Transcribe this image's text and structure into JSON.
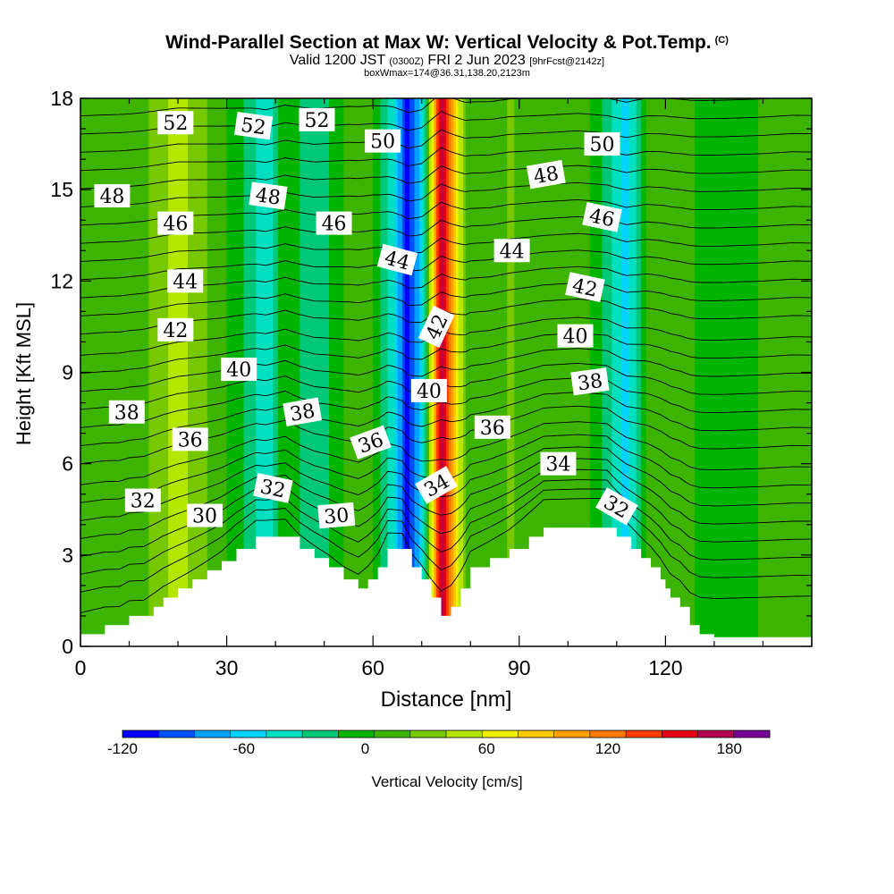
{
  "title": "Wind-Parallel Section at Max W: Vertical Velocity & Pot.Temp.",
  "title_mark": "(C)",
  "subtitle_main": "Valid 1200 JST",
  "subtitle_utc": "(0300Z)",
  "subtitle_date": "FRI 2 Jun 2023",
  "subtitle_fcst": "[9hrFcst@2142z]",
  "subtitle2": "boxWmax=174@36.31,138.20,2123m",
  "chart_data": {
    "type": "heatmap",
    "xlabel": "Distance [nm]",
    "ylabel": "Height [Kft MSL]",
    "xlim": [
      0,
      150
    ],
    "ylim": [
      0,
      18
    ],
    "x_ticks": [
      "0",
      "30",
      "60",
      "90",
      "120"
    ],
    "y_ticks": [
      "0",
      "3",
      "6",
      "9",
      "12",
      "15",
      "18"
    ],
    "colorbar": {
      "label": "Vertical Velocity [cm/s]",
      "range": [
        -120,
        200
      ],
      "tick_labels": [
        "-120",
        "-60",
        "0",
        "60",
        "120",
        "180"
      ],
      "colors": [
        "#0000ff",
        "#0050ff",
        "#00a0ff",
        "#00d2ff",
        "#00e0c0",
        "#00c878",
        "#00b400",
        "#3cb400",
        "#78c800",
        "#b4e600",
        "#f0f000",
        "#ffc800",
        "#ffa000",
        "#ff7800",
        "#ff3c00",
        "#e60014",
        "#b40050",
        "#780096"
      ]
    },
    "velocity_columns": [
      {
        "x": 0,
        "w": 5
      },
      {
        "x": 10,
        "w": 5
      },
      {
        "x": 20,
        "w": 50
      },
      {
        "x": 35,
        "w": -20
      },
      {
        "x": 38,
        "w": -50
      },
      {
        "x": 42,
        "w": 5
      },
      {
        "x": 48,
        "w": -30
      },
      {
        "x": 55,
        "w": 10
      },
      {
        "x": 60,
        "w": 5
      },
      {
        "x": 64,
        "w": -40
      },
      {
        "x": 67,
        "w": -110
      },
      {
        "x": 70,
        "w": -60
      },
      {
        "x": 72,
        "w": 60
      },
      {
        "x": 74,
        "w": 174
      },
      {
        "x": 76,
        "w": 110
      },
      {
        "x": 79,
        "w": 20
      },
      {
        "x": 84,
        "w": 5
      },
      {
        "x": 88,
        "w": 25
      },
      {
        "x": 95,
        "w": 5
      },
      {
        "x": 102,
        "w": 20
      },
      {
        "x": 108,
        "w": -20
      },
      {
        "x": 112,
        "w": -60
      },
      {
        "x": 116,
        "w": 5
      },
      {
        "x": 120,
        "w": 20
      },
      {
        "x": 125,
        "w": 5
      },
      {
        "x": 132,
        "w": 0
      },
      {
        "x": 140,
        "w": 5
      },
      {
        "x": 146,
        "w": 20
      },
      {
        "x": 150,
        "w": 10
      }
    ],
    "terrain": [
      {
        "x": 0,
        "h": 0.4
      },
      {
        "x": 5,
        "h": 0.7
      },
      {
        "x": 8,
        "h": 0.7
      },
      {
        "x": 10,
        "h": 1.0
      },
      {
        "x": 13,
        "h": 1.0
      },
      {
        "x": 15,
        "h": 1.3
      },
      {
        "x": 17,
        "h": 1.6
      },
      {
        "x": 20,
        "h": 1.9
      },
      {
        "x": 23,
        "h": 2.2
      },
      {
        "x": 26,
        "h": 2.5
      },
      {
        "x": 29,
        "h": 2.8
      },
      {
        "x": 32,
        "h": 3.2
      },
      {
        "x": 36,
        "h": 3.6
      },
      {
        "x": 42,
        "h": 3.6
      },
      {
        "x": 45,
        "h": 3.2
      },
      {
        "x": 48,
        "h": 2.9
      },
      {
        "x": 51,
        "h": 2.6
      },
      {
        "x": 54,
        "h": 2.2
      },
      {
        "x": 57,
        "h": 1.9
      },
      {
        "x": 59,
        "h": 2.2
      },
      {
        "x": 61,
        "h": 2.6
      },
      {
        "x": 63,
        "h": 3.2
      },
      {
        "x": 66,
        "h": 3.2
      },
      {
        "x": 68,
        "h": 2.6
      },
      {
        "x": 70,
        "h": 2.2
      },
      {
        "x": 72,
        "h": 1.6
      },
      {
        "x": 74,
        "h": 1.0
      },
      {
        "x": 76,
        "h": 1.3
      },
      {
        "x": 78,
        "h": 1.9
      },
      {
        "x": 80,
        "h": 2.6
      },
      {
        "x": 84,
        "h": 2.9
      },
      {
        "x": 88,
        "h": 3.2
      },
      {
        "x": 92,
        "h": 3.6
      },
      {
        "x": 95,
        "h": 3.9
      },
      {
        "x": 100,
        "h": 3.9
      },
      {
        "x": 108,
        "h": 3.9
      },
      {
        "x": 110,
        "h": 3.6
      },
      {
        "x": 113,
        "h": 3.2
      },
      {
        "x": 115,
        "h": 2.9
      },
      {
        "x": 117,
        "h": 2.6
      },
      {
        "x": 119,
        "h": 2.2
      },
      {
        "x": 120,
        "h": 1.9
      },
      {
        "x": 121,
        "h": 1.6
      },
      {
        "x": 123,
        "h": 1.3
      },
      {
        "x": 125,
        "h": 0.7
      },
      {
        "x": 127,
        "h": 0.4
      },
      {
        "x": 130,
        "h": 0.3
      },
      {
        "x": 150,
        "h": 0.3
      }
    ],
    "isentropes": {
      "base_theta": 29,
      "interval": 1,
      "levels_kft_at_x0": [
        0.9,
        1.6,
        2.2,
        2.8,
        3.4,
        4.0,
        4.6,
        5.2,
        5.9,
        6.5,
        7.1,
        7.7,
        8.3,
        8.9,
        9.5,
        10.2,
        10.8,
        11.4,
        12.0,
        12.6,
        13.2,
        13.8,
        14.4,
        15.0,
        15.6,
        16.2,
        16.8,
        17.4
      ]
    },
    "contour_labels": [
      {
        "text": "52",
        "x": 19.5,
        "y": 17.2,
        "rot": 0
      },
      {
        "text": "52",
        "x": 35.5,
        "y": 17.1,
        "rot": 8
      },
      {
        "text": "52",
        "x": 48.5,
        "y": 17.3,
        "rot": 0
      },
      {
        "text": "50",
        "x": 62,
        "y": 16.6,
        "rot": 0
      },
      {
        "text": "50",
        "x": 107,
        "y": 16.5,
        "rot": 0
      },
      {
        "text": "48",
        "x": 6.5,
        "y": 14.8,
        "rot": 0
      },
      {
        "text": "48",
        "x": 38.5,
        "y": 14.8,
        "rot": 8
      },
      {
        "text": "48",
        "x": 95.5,
        "y": 15.5,
        "rot": -10
      },
      {
        "text": "46",
        "x": 19.5,
        "y": 13.9,
        "rot": 0
      },
      {
        "text": "46",
        "x": 52,
        "y": 13.9,
        "rot": 0
      },
      {
        "text": "46",
        "x": 107,
        "y": 14.1,
        "rot": 12
      },
      {
        "text": "44",
        "x": 21.5,
        "y": 12.0,
        "rot": 0
      },
      {
        "text": "44",
        "x": 65,
        "y": 12.7,
        "rot": 15
      },
      {
        "text": "44",
        "x": 88.5,
        "y": 13.0,
        "rot": 0
      },
      {
        "text": "42",
        "x": 19.5,
        "y": 10.4,
        "rot": 0
      },
      {
        "text": "42",
        "x": 73,
        "y": 10.5,
        "rot": -65
      },
      {
        "text": "42",
        "x": 103.5,
        "y": 11.8,
        "rot": 12
      },
      {
        "text": "40",
        "x": 32.5,
        "y": 9.1,
        "rot": 0
      },
      {
        "text": "40",
        "x": 71.5,
        "y": 8.4,
        "rot": 0
      },
      {
        "text": "40",
        "x": 101.5,
        "y": 10.2,
        "rot": 0
      },
      {
        "text": "38",
        "x": 9.5,
        "y": 7.7,
        "rot": 0
      },
      {
        "text": "38",
        "x": 45.5,
        "y": 7.7,
        "rot": -10
      },
      {
        "text": "38",
        "x": 104.5,
        "y": 8.7,
        "rot": -8
      },
      {
        "text": "36",
        "x": 22.5,
        "y": 6.8,
        "rot": 0
      },
      {
        "text": "36",
        "x": 59.5,
        "y": 6.7,
        "rot": -20
      },
      {
        "text": "36",
        "x": 84.5,
        "y": 7.2,
        "rot": 0
      },
      {
        "text": "34",
        "x": 73,
        "y": 5.3,
        "rot": -30
      },
      {
        "text": "34",
        "x": 98,
        "y": 6.0,
        "rot": 0
      },
      {
        "text": "32",
        "x": 12.8,
        "y": 4.8,
        "rot": 0
      },
      {
        "text": "32",
        "x": 39.5,
        "y": 5.2,
        "rot": 12
      },
      {
        "text": "32",
        "x": 110,
        "y": 4.6,
        "rot": 30
      },
      {
        "text": "30",
        "x": 25.5,
        "y": 4.3,
        "rot": 0
      },
      {
        "text": "30",
        "x": 52.5,
        "y": 4.3,
        "rot": -5
      }
    ]
  }
}
